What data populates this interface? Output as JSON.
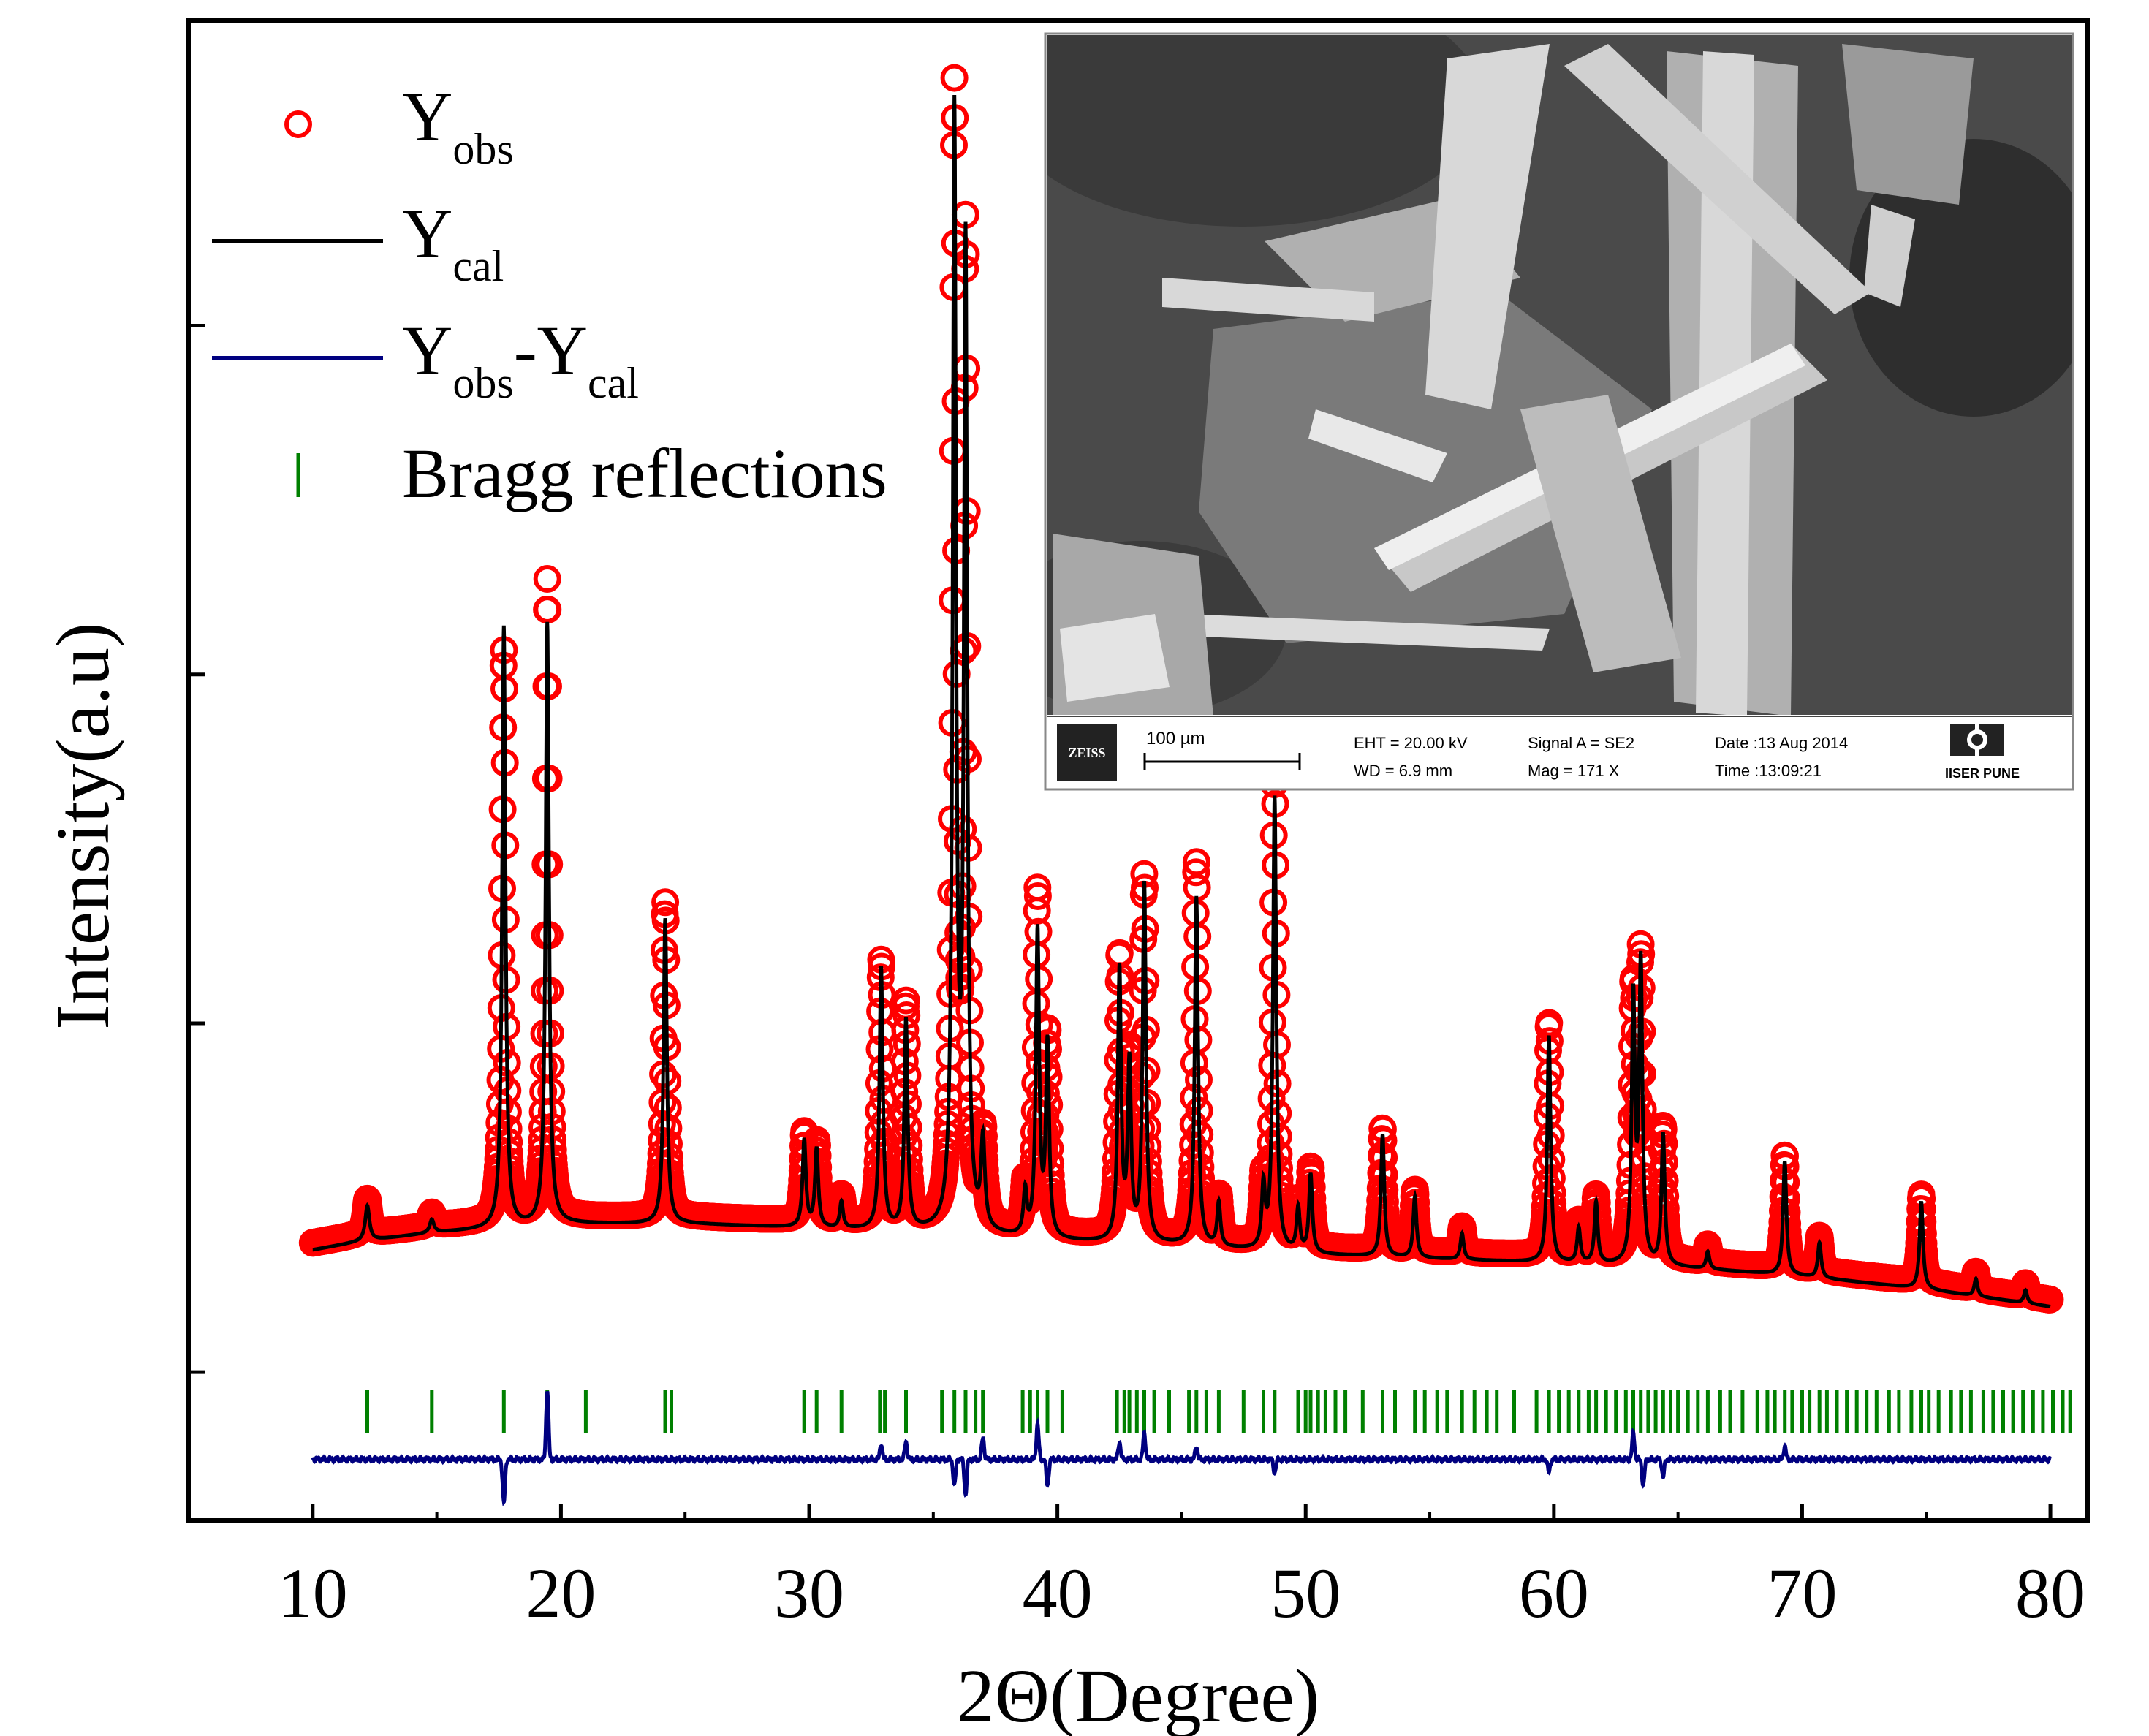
{
  "chart_data": {
    "type": "line",
    "title": "",
    "xlabel": "2Θ(Degree)",
    "ylabel": "Intensity(a.u)",
    "xlim": [
      5,
      81.5
    ],
    "ylim": [
      -0.17,
      1.55
    ],
    "xticks": [
      10,
      20,
      30,
      40,
      50,
      60,
      70,
      80
    ],
    "yticks": [
      0.0,
      0.4,
      0.8,
      1.2
    ],
    "ytick_labels_shown": false,
    "legend": {
      "placement": "top-left",
      "entries": [
        {
          "base": "Y",
          "sub": "obs",
          "mid": "",
          "base2": "",
          "sub2": "",
          "marker": "circle",
          "color": "#ff0000"
        },
        {
          "base": "Y",
          "sub": "cal",
          "mid": "",
          "base2": "",
          "sub2": "",
          "marker": "line",
          "color": "#000000"
        },
        {
          "base": "Y",
          "sub": "obs",
          "mid": "-",
          "base2": "Y",
          "sub2": "cal",
          "marker": "line",
          "color": "#000080"
        },
        {
          "base": "Bragg reflections",
          "sub": "",
          "mid": "",
          "base2": "",
          "sub2": "",
          "marker": "tick",
          "color": "#008000"
        }
      ]
    },
    "series": [
      {
        "name": "Yobs",
        "style": "circles",
        "color": "#ff0000"
      },
      {
        "name": "Ycal",
        "style": "line",
        "color": "#000000"
      },
      {
        "name": "Yobs-Ycal",
        "style": "line",
        "color": "#000080"
      },
      {
        "name": "Bragg reflections",
        "style": "ticks",
        "color": "#008000"
      }
    ],
    "x_range": [
      10,
      80
    ],
    "baseline": {
      "x": [
        10,
        12,
        15,
        18,
        20,
        25,
        30,
        35,
        40,
        45,
        50,
        55,
        60,
        65,
        70,
        75,
        80
      ],
      "y": [
        0.14,
        0.15,
        0.16,
        0.165,
        0.17,
        0.17,
        0.165,
        0.16,
        0.15,
        0.145,
        0.135,
        0.13,
        0.125,
        0.12,
        0.11,
        0.095,
        0.075
      ]
    },
    "peaks": [
      {
        "pos": 12.2,
        "h": 0.04,
        "w": 0.1,
        "obs_scale": 1.0
      },
      {
        "pos": 14.8,
        "h": 0.015,
        "w": 0.1,
        "obs_scale": 1.0
      },
      {
        "pos": 17.7,
        "h": 0.69,
        "w": 0.08,
        "obs_scale": 0.95
      },
      {
        "pos": 19.45,
        "h": 0.69,
        "w": 0.08,
        "obs_scale": 1.06
      },
      {
        "pos": 24.2,
        "h": 0.35,
        "w": 0.08,
        "obs_scale": 1.03
      },
      {
        "pos": 29.8,
        "h": 0.1,
        "w": 0.08,
        "obs_scale": 1.0
      },
      {
        "pos": 30.3,
        "h": 0.09,
        "w": 0.08,
        "obs_scale": 1.0
      },
      {
        "pos": 31.3,
        "h": 0.03,
        "w": 0.08,
        "obs_scale": 1.0
      },
      {
        "pos": 32.9,
        "h": 0.3,
        "w": 0.08,
        "obs_scale": 1.0
      },
      {
        "pos": 33.9,
        "h": 0.24,
        "w": 0.08,
        "obs_scale": 1.05
      },
      {
        "pos": 35.85,
        "h": 1.27,
        "w": 0.08,
        "obs_scale": 1.01
      },
      {
        "pos": 36.3,
        "h": 1.12,
        "w": 0.08,
        "obs_scale": 1.0
      },
      {
        "pos": 37.0,
        "h": 0.1,
        "w": 0.09,
        "obs_scale": 1.0
      },
      {
        "pos": 38.7,
        "h": 0.05,
        "w": 0.08,
        "obs_scale": 1.0
      },
      {
        "pos": 39.2,
        "h": 0.35,
        "w": 0.08,
        "obs_scale": 1.1
      },
      {
        "pos": 39.6,
        "h": 0.22,
        "w": 0.08,
        "obs_scale": 1.0
      },
      {
        "pos": 42.5,
        "h": 0.31,
        "w": 0.08,
        "obs_scale": 1.02
      },
      {
        "pos": 42.9,
        "h": 0.2,
        "w": 0.08,
        "obs_scale": 1.0
      },
      {
        "pos": 43.5,
        "h": 0.41,
        "w": 0.08,
        "obs_scale": 1.0
      },
      {
        "pos": 45.6,
        "h": 0.4,
        "w": 0.08,
        "obs_scale": 1.08
      },
      {
        "pos": 46.5,
        "h": 0.05,
        "w": 0.08,
        "obs_scale": 1.0
      },
      {
        "pos": 48.3,
        "h": 0.07,
        "w": 0.08,
        "obs_scale": 1.0
      },
      {
        "pos": 48.75,
        "h": 0.52,
        "w": 0.08,
        "obs_scale": 1.04
      },
      {
        "pos": 49.7,
        "h": 0.05,
        "w": 0.08,
        "obs_scale": 1.0
      },
      {
        "pos": 50.2,
        "h": 0.09,
        "w": 0.08,
        "obs_scale": 1.0
      },
      {
        "pos": 53.1,
        "h": 0.14,
        "w": 0.08,
        "obs_scale": 1.0
      },
      {
        "pos": 54.4,
        "h": 0.07,
        "w": 0.08,
        "obs_scale": 1.0
      },
      {
        "pos": 56.3,
        "h": 0.03,
        "w": 0.08,
        "obs_scale": 1.0
      },
      {
        "pos": 59.8,
        "h": 0.26,
        "w": 0.08,
        "obs_scale": 1.03
      },
      {
        "pos": 61.0,
        "h": 0.04,
        "w": 0.08,
        "obs_scale": 1.0
      },
      {
        "pos": 61.7,
        "h": 0.07,
        "w": 0.08,
        "obs_scale": 1.0
      },
      {
        "pos": 63.2,
        "h": 0.3,
        "w": 0.08,
        "obs_scale": 1.0
      },
      {
        "pos": 63.5,
        "h": 0.34,
        "w": 0.08,
        "obs_scale": 1.0
      },
      {
        "pos": 64.4,
        "h": 0.15,
        "w": 0.08,
        "obs_scale": 1.0
      },
      {
        "pos": 66.2,
        "h": 0.02,
        "w": 0.08,
        "obs_scale": 1.0
      },
      {
        "pos": 69.3,
        "h": 0.13,
        "w": 0.08,
        "obs_scale": 1.0
      },
      {
        "pos": 70.7,
        "h": 0.04,
        "w": 0.08,
        "obs_scale": 1.0
      },
      {
        "pos": 74.8,
        "h": 0.1,
        "w": 0.08,
        "obs_scale": 1.0
      },
      {
        "pos": 77.0,
        "h": 0.02,
        "w": 0.08,
        "obs_scale": 1.0
      },
      {
        "pos": 79.0,
        "h": 0.015,
        "w": 0.08,
        "obs_scale": 1.0
      }
    ],
    "bragg_level": [
      -0.02,
      -0.07
    ],
    "bragg_positions": [
      12.2,
      14.8,
      17.7,
      19.45,
      21.0,
      24.2,
      24.45,
      29.8,
      30.3,
      31.3,
      32.85,
      33.05,
      33.9,
      35.35,
      35.85,
      36.3,
      36.7,
      37.0,
      38.6,
      38.9,
      39.2,
      39.6,
      40.2,
      42.4,
      42.7,
      42.9,
      43.2,
      43.5,
      43.9,
      44.5,
      45.3,
      45.6,
      46.0,
      46.5,
      47.5,
      48.3,
      48.75,
      49.7,
      50.0,
      50.2,
      50.5,
      50.8,
      51.2,
      51.6,
      52.3,
      53.1,
      53.6,
      54.4,
      54.8,
      55.3,
      55.7,
      56.3,
      56.8,
      57.3,
      57.7,
      58.4,
      59.3,
      59.8,
      60.2,
      60.6,
      61.0,
      61.4,
      61.7,
      62.1,
      62.5,
      62.9,
      63.2,
      63.5,
      63.8,
      64.1,
      64.4,
      64.7,
      65.0,
      65.4,
      65.8,
      66.2,
      66.7,
      67.1,
      67.6,
      68.2,
      68.6,
      68.9,
      69.3,
      69.6,
      70.0,
      70.3,
      70.7,
      71.0,
      71.4,
      71.8,
      72.2,
      72.6,
      73.0,
      73.5,
      73.9,
      74.4,
      74.8,
      75.1,
      75.5,
      76.0,
      76.4,
      76.8,
      77.3,
      77.7,
      78.1,
      78.5,
      78.9,
      79.3,
      79.7,
      80.1,
      80.5,
      80.8
    ],
    "diff_level": -0.1,
    "diff_features": [
      {
        "pos": 17.7,
        "amp": -0.05
      },
      {
        "pos": 19.45,
        "amp": 0.08
      },
      {
        "pos": 32.9,
        "amp": 0.018
      },
      {
        "pos": 33.9,
        "amp": 0.02
      },
      {
        "pos": 35.85,
        "amp": -0.03
      },
      {
        "pos": 36.3,
        "amp": -0.04
      },
      {
        "pos": 37.0,
        "amp": 0.025
      },
      {
        "pos": 39.2,
        "amp": 0.04
      },
      {
        "pos": 39.6,
        "amp": -0.03
      },
      {
        "pos": 42.5,
        "amp": 0.02
      },
      {
        "pos": 43.5,
        "amp": 0.03
      },
      {
        "pos": 45.6,
        "amp": 0.015
      },
      {
        "pos": 48.75,
        "amp": -0.015
      },
      {
        "pos": 59.8,
        "amp": -0.015
      },
      {
        "pos": 63.2,
        "amp": 0.03
      },
      {
        "pos": 63.6,
        "amp": -0.03
      },
      {
        "pos": 64.4,
        "amp": -0.02
      },
      {
        "pos": 69.3,
        "amp": 0.015
      }
    ]
  },
  "inset": {
    "description_label": "SEM micrograph",
    "scale_bar": "100 µm",
    "brand": "ZEISS",
    "eht": "EHT = 20.00 kV",
    "wd": "WD =  6.9 mm",
    "signal": "Signal A = SE2",
    "mag": "Mag =    171 X",
    "date": "Date :13 Aug 2014",
    "time": "Time :13:09:21",
    "institute": "IISER PUNE",
    "colors": {
      "background": "#4a4a4a",
      "crystal_light": "#d8d8d8",
      "crystal_mid": "#b0b0b0",
      "crystal_dark": "#7a7a7a",
      "info_bar": "#ffffff"
    }
  }
}
